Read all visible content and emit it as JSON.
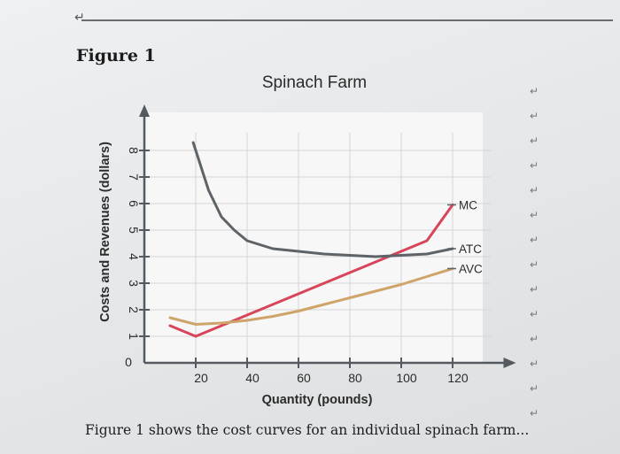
{
  "figure_label": "Figure 1",
  "caption": "Figure 1 shows the cost curves for an individual spinach farm...",
  "chart_data": {
    "type": "line",
    "title": "Spinach Farm",
    "xlabel": "Quantity (pounds)",
    "ylabel": "Costs and Revenues (dollars)",
    "xlim": [
      0,
      135
    ],
    "ylim": [
      0,
      9
    ],
    "x_ticks": [
      20,
      40,
      60,
      80,
      100,
      120
    ],
    "y_ticks": [
      1,
      2,
      3,
      4,
      5,
      6,
      7,
      8
    ],
    "origin_label": "0",
    "grid": true,
    "legend": "curve-end labels",
    "series": [
      {
        "name": "MC",
        "color": "#d8455a",
        "x": [
          10,
          20,
          30,
          40,
          50,
          60,
          70,
          80,
          90,
          100,
          110,
          120
        ],
        "y": [
          1.4,
          1.0,
          1.4,
          1.8,
          2.2,
          2.6,
          3.0,
          3.4,
          3.8,
          4.2,
          4.6,
          5.95
        ]
      },
      {
        "name": "ATC",
        "color": "#5e6368",
        "x": [
          19,
          22,
          25,
          30,
          35,
          40,
          50,
          60,
          70,
          80,
          90,
          100,
          110,
          120
        ],
        "y": [
          8.3,
          7.4,
          6.5,
          5.5,
          5.0,
          4.6,
          4.3,
          4.2,
          4.1,
          4.05,
          4.0,
          4.05,
          4.1,
          4.3
        ]
      },
      {
        "name": "AVC",
        "color": "#cfa46a",
        "x": [
          10,
          20,
          30,
          40,
          50,
          60,
          70,
          80,
          90,
          100,
          110,
          120
        ],
        "y": [
          1.7,
          1.45,
          1.5,
          1.6,
          1.75,
          1.95,
          2.2,
          2.45,
          2.7,
          2.95,
          3.25,
          3.55
        ]
      }
    ]
  }
}
